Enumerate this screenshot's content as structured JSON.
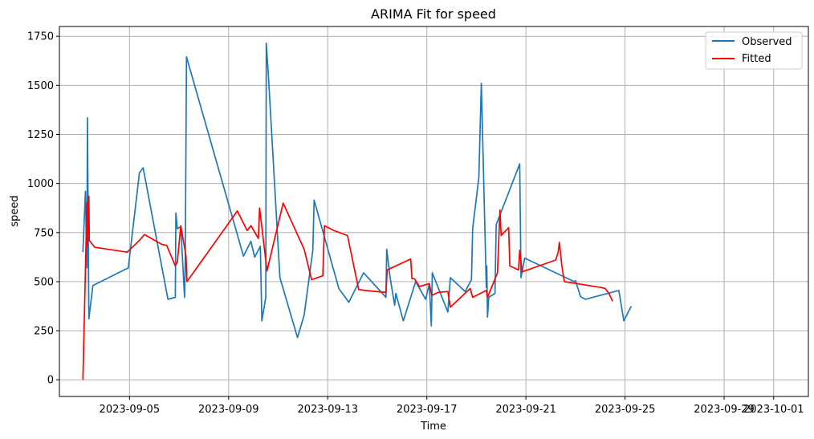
{
  "chart_data": {
    "type": "line",
    "title": "ARIMA Fit for speed",
    "xlabel": "Time",
    "ylabel": "speed",
    "x_start": "2023-09-02",
    "xlim": [
      0.17,
      30.4
    ],
    "ylim": [
      -85,
      1800
    ],
    "grid": true,
    "legend_position": "top-right",
    "x_ticks": [
      {
        "value": 3,
        "label": "2023-09-05"
      },
      {
        "value": 7,
        "label": "2023-09-09"
      },
      {
        "value": 11,
        "label": "2023-09-13"
      },
      {
        "value": 15,
        "label": "2023-09-17"
      },
      {
        "value": 19,
        "label": "2023-09-21"
      },
      {
        "value": 23,
        "label": "2023-09-25"
      },
      {
        "value": 27,
        "label": "2023-09-29"
      },
      {
        "value": 29,
        "label": "2023-10-01"
      }
    ],
    "y_ticks": [
      0,
      250,
      500,
      750,
      1000,
      1250,
      1500,
      1750
    ],
    "series": [
      {
        "name": "Observed",
        "color": "#1f77b4",
        "points": [
          [
            1.12,
            650
          ],
          [
            1.22,
            960
          ],
          [
            1.28,
            570
          ],
          [
            1.3,
            1335
          ],
          [
            1.36,
            310
          ],
          [
            1.52,
            480
          ],
          [
            2.95,
            570
          ],
          [
            3.4,
            1055
          ],
          [
            3.55,
            1080
          ],
          [
            4.55,
            410
          ],
          [
            4.85,
            420
          ],
          [
            4.87,
            850
          ],
          [
            4.93,
            770
          ],
          [
            5.07,
            780
          ],
          [
            5.22,
            420
          ],
          [
            5.25,
            615
          ],
          [
            5.3,
            1645
          ],
          [
            7.6,
            630
          ],
          [
            7.9,
            705
          ],
          [
            8.05,
            625
          ],
          [
            8.28,
            680
          ],
          [
            8.34,
            300
          ],
          [
            8.5,
            420
          ],
          [
            8.52,
            1715
          ],
          [
            8.6,
            1560
          ],
          [
            9.07,
            520
          ],
          [
            9.78,
            215
          ],
          [
            10.05,
            330
          ],
          [
            10.4,
            660
          ],
          [
            10.45,
            915
          ],
          [
            11.45,
            465
          ],
          [
            11.85,
            395
          ],
          [
            12.45,
            545
          ],
          [
            13.35,
            420
          ],
          [
            13.38,
            665
          ],
          [
            13.52,
            520
          ],
          [
            13.7,
            380
          ],
          [
            13.75,
            440
          ],
          [
            14.05,
            300
          ],
          [
            14.2,
            360
          ],
          [
            14.55,
            500
          ],
          [
            14.95,
            410
          ],
          [
            15.1,
            490
          ],
          [
            15.18,
            275
          ],
          [
            15.22,
            545
          ],
          [
            15.85,
            345
          ],
          [
            15.95,
            520
          ],
          [
            16.55,
            450
          ],
          [
            16.8,
            510
          ],
          [
            16.85,
            770
          ],
          [
            17.1,
            1030
          ],
          [
            17.2,
            1510
          ],
          [
            17.4,
            470
          ],
          [
            17.42,
            580
          ],
          [
            17.45,
            320
          ],
          [
            17.5,
            420
          ],
          [
            17.75,
            440
          ],
          [
            17.8,
            790
          ],
          [
            18.75,
            1100
          ],
          [
            18.8,
            520
          ],
          [
            18.95,
            620
          ],
          [
            20.95,
            500
          ],
          [
            21.0,
            505
          ],
          [
            21.2,
            425
          ],
          [
            21.25,
            420
          ],
          [
            21.4,
            410
          ],
          [
            22.75,
            455
          ],
          [
            22.95,
            300
          ],
          [
            23.25,
            375
          ]
        ]
      },
      {
        "name": "Fitted",
        "color": "#ff0000",
        "points": [
          [
            1.12,
            0
          ],
          [
            1.22,
            560
          ],
          [
            1.28,
            900
          ],
          [
            1.3,
            680
          ],
          [
            1.36,
            935
          ],
          [
            1.38,
            710
          ],
          [
            1.6,
            675
          ],
          [
            2.9,
            650
          ],
          [
            3.4,
            710
          ],
          [
            3.6,
            740
          ],
          [
            4.3,
            690
          ],
          [
            4.5,
            685
          ],
          [
            4.85,
            580
          ],
          [
            4.93,
            600
          ],
          [
            5.07,
            785
          ],
          [
            5.28,
            630
          ],
          [
            5.32,
            500
          ],
          [
            7.35,
            860
          ],
          [
            7.75,
            760
          ],
          [
            7.9,
            785
          ],
          [
            8.2,
            720
          ],
          [
            8.25,
            875
          ],
          [
            8.55,
            555
          ],
          [
            9.2,
            900
          ],
          [
            10.05,
            665
          ],
          [
            10.35,
            510
          ],
          [
            10.8,
            530
          ],
          [
            10.87,
            785
          ],
          [
            11.25,
            760
          ],
          [
            11.8,
            735
          ],
          [
            12.25,
            460
          ],
          [
            12.5,
            455
          ],
          [
            13.35,
            445
          ],
          [
            13.4,
            560
          ],
          [
            14.35,
            615
          ],
          [
            14.4,
            515
          ],
          [
            14.5,
            515
          ],
          [
            14.7,
            475
          ],
          [
            15.1,
            490
          ],
          [
            15.2,
            430
          ],
          [
            15.45,
            445
          ],
          [
            15.85,
            450
          ],
          [
            15.95,
            370
          ],
          [
            16.75,
            465
          ],
          [
            16.85,
            420
          ],
          [
            17.4,
            455
          ],
          [
            17.45,
            420
          ],
          [
            17.85,
            545
          ],
          [
            17.95,
            865
          ],
          [
            18.0,
            735
          ],
          [
            18.3,
            775
          ],
          [
            18.35,
            580
          ],
          [
            18.7,
            560
          ],
          [
            18.75,
            660
          ],
          [
            18.85,
            550
          ],
          [
            20.2,
            610
          ],
          [
            20.3,
            650
          ],
          [
            20.35,
            700
          ],
          [
            20.45,
            580
          ],
          [
            20.55,
            500
          ],
          [
            22.05,
            470
          ],
          [
            22.2,
            465
          ],
          [
            22.35,
            440
          ],
          [
            22.5,
            400
          ]
        ]
      }
    ]
  }
}
